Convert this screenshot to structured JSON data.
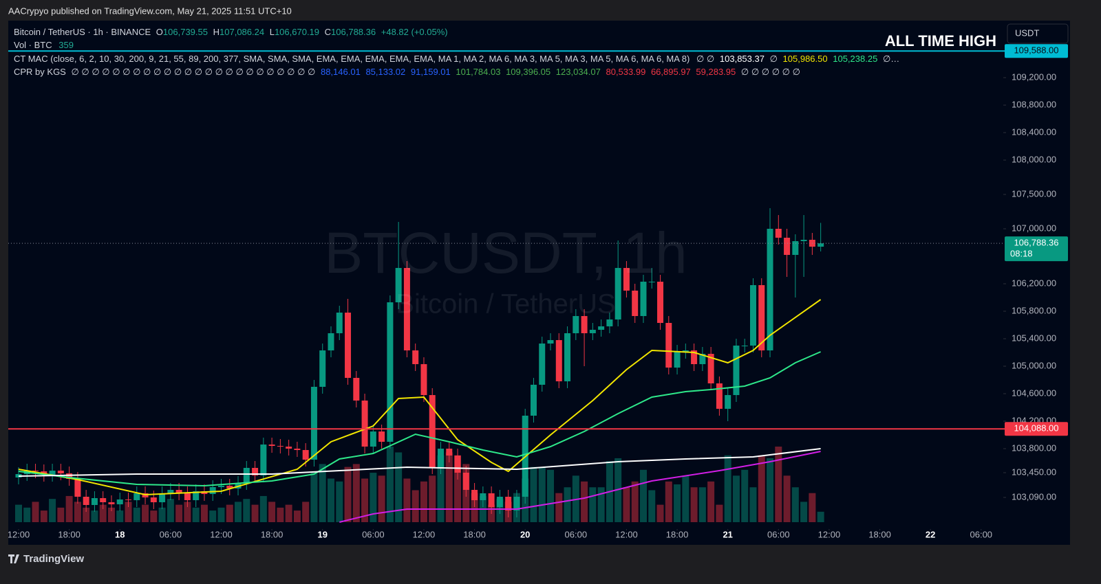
{
  "header": {
    "publisher": "AACrypyo published on TradingView.com, May 21, 2025 11:51 UTC+10",
    "brand": "TradingView",
    "currency": "USDT",
    "ath_note": "ALL TIME HIGH"
  },
  "legend": {
    "symbol": "Bitcoin / TetherUS · 1h · BINANCE",
    "o_key": "O",
    "o": "106,739.55",
    "h_key": "H",
    "h": "107,086.24",
    "l_key": "L",
    "l": "106,670.19",
    "c_key": "C",
    "c": "106,788.36",
    "change": "+48.82 (+0.05%)",
    "vol_name": "Vol · BTC",
    "vol": "359",
    "mac_name": "CT MAC (close, 6, 2, 10, 30, 200, 9, 21, 55, 89, 200, 377, SMA, SMA, SMA, EMA, EMA, EMA, EMA, EMA, MA 1, MA 2, MA 6, MA 3, MA 5, MA 3, MA 5, MA 6, MA 6, MA 8)",
    "mac_pre": "∅ ∅",
    "mac_1": "103,853.37",
    "mac_mid": "∅",
    "mac_2": "105,986.50",
    "mac_3": "105,238.25",
    "mac_post": "∅…",
    "cpr_name": "CPR by KGS",
    "cpr_pre": "∅ ∅ ∅ ∅ ∅ ∅ ∅ ∅ ∅ ∅ ∅ ∅ ∅ ∅ ∅ ∅ ∅ ∅ ∅ ∅ ∅ ∅ ∅ ∅",
    "cpr_blue": [
      "88,146.01",
      "85,133.02",
      "91,159.01"
    ],
    "cpr_green": [
      "101,784.03",
      "109,396.05",
      "123,034.07"
    ],
    "cpr_red": [
      "80,533.99",
      "66,895.97",
      "59,283.95"
    ],
    "cpr_post": "∅ ∅ ∅ ∅ ∅ ∅"
  },
  "watermark": {
    "title": "BTCUSDT, 1h",
    "subtitle": "Bitcoin / TetherUS"
  },
  "chart_data": {
    "type": "candlestick",
    "up_color": "#089981",
    "down_color": "#f23645",
    "opens": [
      103380,
      103430,
      103480,
      103470,
      103420,
      103480,
      103440,
      103360,
      103100,
      102980,
      103080,
      103020,
      102990,
      103060,
      103050,
      103150,
      103090,
      103020,
      103150,
      103200,
      103150,
      103050,
      103180,
      103140,
      103240,
      103260,
      103220,
      103300,
      103520,
      103410,
      103860,
      103840,
      103830,
      103800,
      103780,
      103640,
      104700,
      105230,
      105480,
      105780,
      104830,
      104500,
      103830,
      104050,
      103900,
      105930,
      106430,
      105230,
      105030,
      104580,
      103530,
      103800,
      103700,
      103450,
      103200,
      103050,
      103150,
      102950,
      103100,
      102900,
      103100,
      104280,
      104730,
      105330,
      105380,
      104780,
      105480,
      105730,
      105480,
      105530,
      105580,
      105680,
      106430,
      106100,
      105730,
      106230,
      106230,
      105630,
      104980,
      105210,
      105230,
      105030,
      105180,
      104750,
      104380,
      104580,
      105300,
      105300,
      106180,
      105230,
      107000,
      106870,
      106620,
      106820,
      106840,
      106739.55
    ],
    "highs": [
      103530,
      103580,
      103580,
      103570,
      103580,
      103580,
      103540,
      103460,
      103200,
      103180,
      103180,
      103120,
      103160,
      103160,
      103250,
      103250,
      103190,
      103250,
      103300,
      103300,
      103250,
      103280,
      103280,
      103340,
      103360,
      103360,
      103400,
      103620,
      103620,
      103960,
      103960,
      103940,
      103930,
      103900,
      103880,
      104800,
      105330,
      105580,
      105880,
      105980,
      104930,
      104600,
      104150,
      104150,
      106030,
      107100,
      106530,
      105330,
      105130,
      104680,
      103900,
      103900,
      103800,
      103550,
      103300,
      103250,
      103250,
      103200,
      103200,
      103200,
      104380,
      104830,
      105430,
      105480,
      105480,
      105580,
      105830,
      105830,
      105630,
      105680,
      105780,
      106830,
      106530,
      106200,
      106330,
      106430,
      106330,
      105730,
      105310,
      105330,
      105330,
      105280,
      105280,
      104850,
      104680,
      105400,
      105400,
      106280,
      106280,
      107300,
      107200,
      107000,
      106920,
      107200,
      106940,
      107086.24
    ],
    "lows": [
      103280,
      103330,
      103370,
      103320,
      103320,
      103340,
      103260,
      103000,
      102880,
      102880,
      102920,
      102890,
      102890,
      102950,
      102950,
      102990,
      102920,
      102920,
      103050,
      103050,
      102950,
      102950,
      103040,
      103040,
      103140,
      103120,
      103120,
      103200,
      103310,
      103310,
      103740,
      103730,
      103700,
      103680,
      103540,
      103540,
      104600,
      105130,
      105380,
      104730,
      104400,
      103730,
      103730,
      103800,
      103800,
      105830,
      105130,
      104930,
      104480,
      103430,
      103430,
      103600,
      103350,
      103100,
      102950,
      102950,
      102850,
      102850,
      102800,
      102800,
      103000,
      104180,
      104630,
      105230,
      104680,
      104680,
      105380,
      105000,
      105380,
      105430,
      105480,
      105580,
      106000,
      105630,
      105630,
      106130,
      105530,
      104880,
      104880,
      105110,
      104930,
      104930,
      104650,
      104280,
      104200,
      104480,
      105200,
      105200,
      105130,
      105130,
      106770,
      106300,
      106000,
      106300,
      106620,
      106670.19
    ],
    "closes": [
      103430,
      103480,
      103470,
      103420,
      103480,
      103440,
      103360,
      103100,
      102980,
      103080,
      103020,
      102990,
      103060,
      103050,
      103150,
      103090,
      103020,
      103150,
      103200,
      103150,
      103050,
      103180,
      103140,
      103240,
      103260,
      103220,
      103300,
      103520,
      103410,
      103860,
      103840,
      103830,
      103800,
      103780,
      103640,
      104700,
      105230,
      105480,
      105780,
      104830,
      104500,
      103830,
      104050,
      103900,
      105930,
      106430,
      105230,
      105030,
      104580,
      103530,
      103800,
      103700,
      103450,
      103200,
      103050,
      103150,
      102950,
      103100,
      102900,
      103100,
      104280,
      104730,
      105330,
      105380,
      104780,
      105480,
      105730,
      105480,
      105530,
      105580,
      105680,
      106430,
      106100,
      105730,
      106230,
      106230,
      105630,
      104980,
      105210,
      105230,
      105030,
      105180,
      104750,
      104380,
      104580,
      105300,
      105300,
      106180,
      105230,
      107000,
      106870,
      106620,
      106820,
      106840,
      106739.55,
      106788.36
    ],
    "volumes": [
      600,
      500,
      700,
      400,
      800,
      500,
      900,
      700,
      500,
      400,
      600,
      500,
      400,
      700,
      500,
      600,
      400,
      500,
      800,
      600,
      700,
      500,
      600,
      400,
      500,
      600,
      700,
      800,
      600,
      900,
      700,
      500,
      600,
      400,
      700,
      1700,
      2000,
      1500,
      1400,
      1900,
      2000,
      1500,
      1700,
      1600,
      2600,
      2400,
      1500,
      1100,
      1400,
      1600,
      2300,
      2400,
      2300,
      2000,
      1000,
      900,
      600,
      800,
      700,
      1000,
      1500,
      1900,
      1900,
      1800,
      1000,
      1200,
      1600,
      1400,
      1200,
      1200,
      2100,
      2200,
      1200,
      1400,
      1800,
      1100,
      600,
      1400,
      1300,
      1600,
      1200,
      1200,
      1400,
      600,
      2300,
      1600,
      1800,
      1200,
      2300,
      2200,
      2600,
      1600,
      1200,
      700,
      1000,
      359
    ],
    "series": [
      {
        "color": "#f2e600",
        "x": [
          0,
          7,
          15,
          24,
          33,
          37,
          42,
          45,
          48,
          52,
          56,
          58,
          63,
          68,
          72,
          75,
          80,
          84,
          87,
          89,
          95
        ],
        "values": [
          103500,
          103350,
          103130,
          103180,
          103500,
          103900,
          104130,
          104530,
          104550,
          103930,
          103600,
          103470,
          104000,
          104500,
          104950,
          105230,
          105200,
          105050,
          105230,
          105450,
          105970
        ]
      },
      {
        "color": "#2ee88a",
        "x": [
          0,
          6,
          14,
          22,
          30,
          35,
          38,
          42,
          47,
          51,
          55,
          59,
          63,
          67,
          71,
          75,
          79,
          82,
          86,
          89,
          92,
          95
        ],
        "values": [
          103470,
          103380,
          103280,
          103260,
          103330,
          103430,
          103650,
          103730,
          104010,
          103900,
          103780,
          103680,
          103830,
          104050,
          104310,
          104550,
          104630,
          104660,
          104710,
          104830,
          105050,
          105210
        ]
      },
      {
        "color": "#ffffff",
        "x": [
          0,
          14,
          30,
          38,
          46,
          59,
          71,
          79,
          87,
          95
        ],
        "values": [
          103400,
          103430,
          103430,
          103480,
          103530,
          103500,
          103610,
          103650,
          103680,
          103800
        ]
      },
      {
        "color": "#d21ee6",
        "x": [
          38,
          42,
          46,
          59,
          67,
          75,
          83,
          89,
          95
        ],
        "values": [
          102730,
          102850,
          102920,
          102920,
          103080,
          103330,
          103480,
          103610,
          103760
        ]
      }
    ],
    "ylim": [
      102630,
      110030
    ],
    "yticks": [
      {
        "value": 109200,
        "label": "109,200.00"
      },
      {
        "value": 108800,
        "label": "108,800.00"
      },
      {
        "value": 108400,
        "label": "108,400.00"
      },
      {
        "value": 108000,
        "label": "108,000.00"
      },
      {
        "value": 107500,
        "label": "107,500.00"
      },
      {
        "value": 107000,
        "label": "107,000.00"
      },
      {
        "value": 106200,
        "label": "106,200.00"
      },
      {
        "value": 105800,
        "label": "105,800.00"
      },
      {
        "value": 105400,
        "label": "105,400.00"
      },
      {
        "value": 105000,
        "label": "105,000.00"
      },
      {
        "value": 104600,
        "label": "104,600.00"
      },
      {
        "value": 104200,
        "label": "104,200.00"
      },
      {
        "value": 103800,
        "label": "103,800.00"
      },
      {
        "value": 103450,
        "label": "103,450.00"
      },
      {
        "value": 103090,
        "label": "103,090.00"
      }
    ],
    "xticks": [
      {
        "value": 0,
        "label": "12:00"
      },
      {
        "value": 6,
        "label": "18:00"
      },
      {
        "value": 12,
        "label": "18"
      },
      {
        "value": 18,
        "label": "06:00"
      },
      {
        "value": 24,
        "label": "12:00"
      },
      {
        "value": 30,
        "label": "18:00"
      },
      {
        "value": 36,
        "label": "19"
      },
      {
        "value": 42,
        "label": "06:00"
      },
      {
        "value": 48,
        "label": "12:00"
      },
      {
        "value": 54,
        "label": "18:00"
      },
      {
        "value": 60,
        "label": "20"
      },
      {
        "value": 66,
        "label": "06:00"
      },
      {
        "value": 72,
        "label": "12:00"
      },
      {
        "value": 78,
        "label": "18:00"
      },
      {
        "value": 84,
        "label": "21"
      },
      {
        "value": 90,
        "label": "06:00"
      },
      {
        "value": 96,
        "label": "12:00"
      },
      {
        "value": 102,
        "label": "18:00"
      },
      {
        "value": 108,
        "label": "22"
      },
      {
        "value": 114,
        "label": "06:00"
      }
    ],
    "hlines": [
      {
        "value": 109588,
        "label": "109,588.00",
        "color": "#00bcd4"
      },
      {
        "value": 104088,
        "label": "104,088.00",
        "color": "#f23645"
      }
    ],
    "last_price": {
      "value": 106788.36,
      "label": "106,788.36",
      "countdown": "08:18",
      "color": "#089981"
    }
  }
}
